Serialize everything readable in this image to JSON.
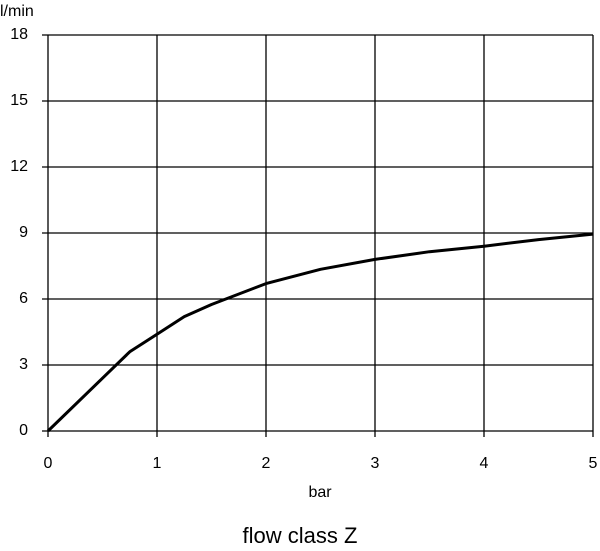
{
  "chart_data": {
    "type": "line",
    "title": "flow class Z",
    "xlabel": "bar",
    "ylabel": "l/min",
    "x": [
      0,
      0.5,
      0.75,
      1,
      1.25,
      1.5,
      2,
      2.5,
      3,
      3.5,
      4,
      4.5,
      5
    ],
    "series": [
      {
        "color": "#000000",
        "values": [
          0,
          2.4,
          3.6,
          4.4,
          5.2,
          5.75,
          6.7,
          7.35,
          7.8,
          8.15,
          8.4,
          8.7,
          8.95
        ]
      }
    ],
    "xlim": [
      0,
      5
    ],
    "xticks": [
      0,
      1,
      2,
      3,
      4,
      5
    ],
    "ylim": [
      0,
      18
    ],
    "yticks": [
      0,
      3,
      6,
      9,
      12,
      15,
      18
    ],
    "grid": true
  }
}
